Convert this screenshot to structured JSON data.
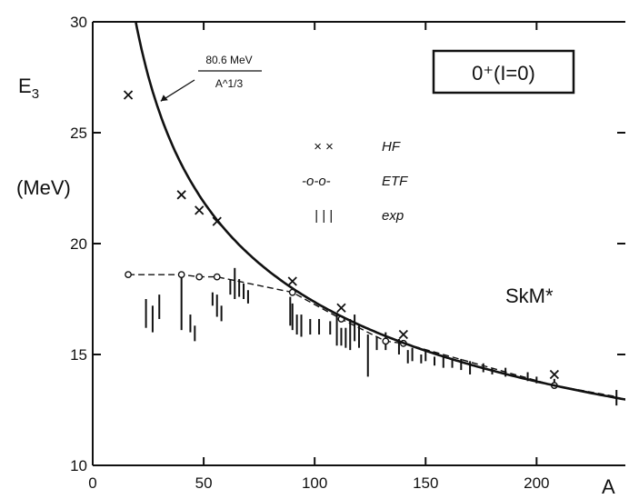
{
  "chart_data": {
    "type": "scatter",
    "xlabel": "A",
    "ylabel": "E",
    "ylabel_sub": "3",
    "yunit": "(MeV)",
    "xlim": [
      0,
      240
    ],
    "ylim": [
      10,
      30
    ],
    "xticks": [
      0,
      50,
      100,
      150,
      200
    ],
    "yticks": [
      10,
      15,
      20,
      25,
      30
    ],
    "state_label": "0⁺(I=0)",
    "force_label": "SkM*",
    "formula": {
      "numerator": "80.6 MeV",
      "denominator": "A^1/3",
      "coefficient": 80.6,
      "point_at": [
        29,
        26.3
      ]
    },
    "legend": {
      "position": "top-center",
      "entries": [
        {
          "marker": "× ×",
          "label": "HF"
        },
        {
          "marker": "-o-o-",
          "label": "ETF"
        },
        {
          "marker": "| | |",
          "label": "exp"
        }
      ]
    },
    "series": [
      {
        "name": "HF",
        "marker": "x",
        "points": [
          [
            16,
            26.7
          ],
          [
            40,
            22.2
          ],
          [
            48,
            21.5
          ],
          [
            56,
            21.0
          ],
          [
            90,
            18.3
          ],
          [
            112,
            17.1
          ],
          [
            140,
            15.9
          ],
          [
            208,
            14.1
          ]
        ]
      },
      {
        "name": "ETF",
        "marker": "circle",
        "points": [
          [
            16,
            18.6
          ],
          [
            40,
            18.6
          ],
          [
            48,
            18.5
          ],
          [
            56,
            18.5
          ],
          [
            90,
            17.8
          ],
          [
            112,
            16.6
          ],
          [
            132,
            15.6
          ],
          [
            140,
            15.5
          ],
          [
            208,
            13.6
          ]
        ]
      },
      {
        "name": "exp",
        "marker": "bar",
        "bars": [
          [
            24,
            17.5,
            16.2
          ],
          [
            27,
            17.2,
            16.0
          ],
          [
            30,
            17.7,
            16.6
          ],
          [
            40,
            18.6,
            16.1
          ],
          [
            44,
            16.8,
            16.0
          ],
          [
            46,
            16.3,
            15.6
          ],
          [
            54,
            17.8,
            17.2
          ],
          [
            56,
            17.7,
            16.7
          ],
          [
            58,
            17.2,
            16.5
          ],
          [
            62,
            18.4,
            17.7
          ],
          [
            64,
            18.9,
            17.5
          ],
          [
            66,
            18.4,
            17.6
          ],
          [
            68,
            18.2,
            17.5
          ],
          [
            70,
            17.9,
            17.3
          ],
          [
            89,
            17.6,
            16.3
          ],
          [
            90,
            17.3,
            16.1
          ],
          [
            92,
            16.8,
            15.9
          ],
          [
            94,
            16.8,
            15.8
          ],
          [
            98,
            16.6,
            15.9
          ],
          [
            102,
            16.6,
            15.9
          ],
          [
            107,
            16.5,
            15.9
          ],
          [
            110,
            16.9,
            15.4
          ],
          [
            112,
            16.2,
            15.4
          ],
          [
            114,
            16.2,
            15.3
          ],
          [
            116,
            16.6,
            15.2
          ],
          [
            118,
            16.8,
            15.6
          ],
          [
            120,
            16.3,
            15.3
          ],
          [
            124,
            15.9,
            14.0
          ],
          [
            128,
            15.8,
            15.2
          ],
          [
            132,
            16.0,
            15.2
          ],
          [
            138,
            15.7,
            15.0
          ],
          [
            142,
            15.2,
            14.6
          ],
          [
            144,
            15.3,
            14.7
          ],
          [
            148,
            15.0,
            14.6
          ],
          [
            150,
            15.2,
            14.7
          ],
          [
            154,
            14.9,
            14.5
          ],
          [
            158,
            14.9,
            14.4
          ],
          [
            162,
            14.8,
            14.4
          ],
          [
            166,
            14.8,
            14.3
          ],
          [
            170,
            14.7,
            14.1
          ],
          [
            176,
            14.6,
            14.2
          ],
          [
            180,
            14.4,
            14.1
          ],
          [
            186,
            14.4,
            14.0
          ],
          [
            196,
            14.2,
            13.8
          ],
          [
            200,
            14.0,
            13.7
          ],
          [
            208,
            13.9,
            13.5
          ],
          [
            236,
            13.4,
            12.7
          ]
        ]
      }
    ]
  }
}
